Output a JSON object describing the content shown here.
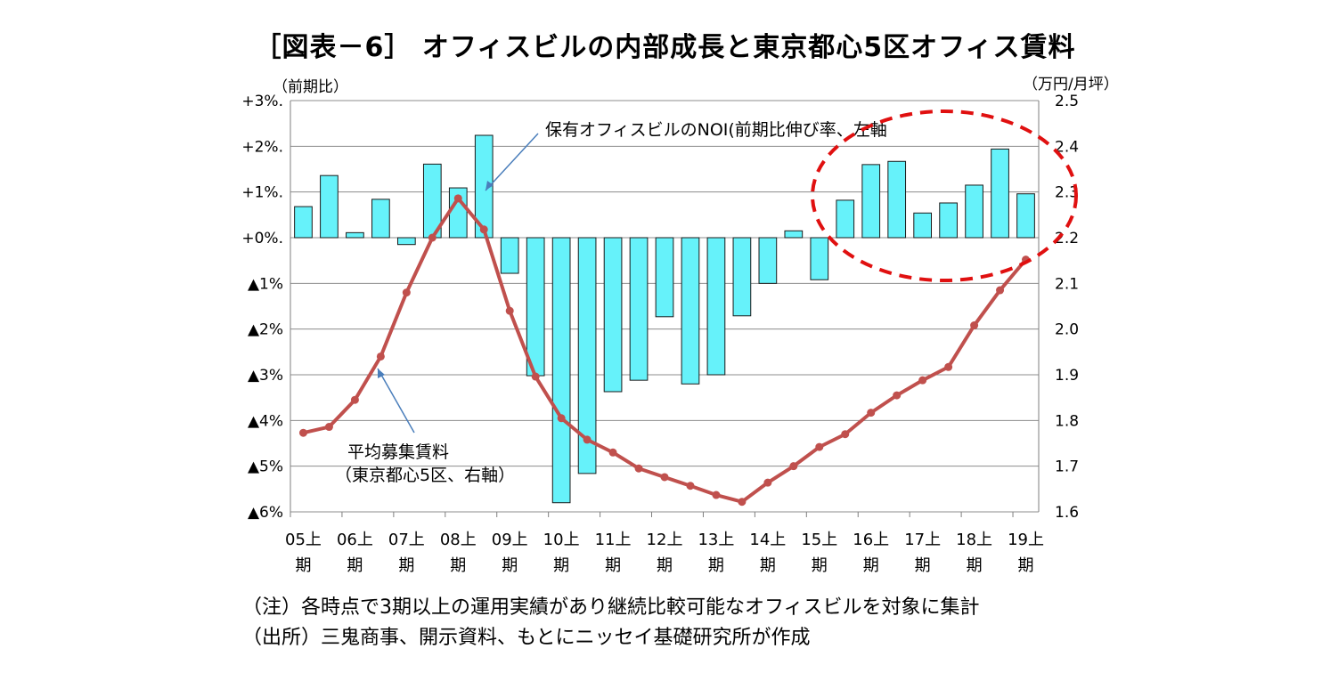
{
  "title": "［図表－6］ オフィスビルの内部成長と東京都心5区オフィス賃料",
  "notes": {
    "line1": "（注）各時点で3期以上の運用実績があり継続比較可能なオフィスビルを対象に集計",
    "line2": "（出所）三鬼商事、開示資料、もとにニッセイ基礎研究所が作成"
  },
  "chart_data": {
    "type": "bar+line",
    "left_axis": {
      "unit_label": "（前期比）",
      "range": [
        -6,
        3
      ],
      "ticks": [
        {
          "value": 3,
          "label": "+3%."
        },
        {
          "value": 2,
          "label": "+2%."
        },
        {
          "value": 1,
          "label": "+1%."
        },
        {
          "value": 0,
          "label": "+0%."
        },
        {
          "value": -1,
          "label": "▲1%"
        },
        {
          "value": -2,
          "label": "▲2%"
        },
        {
          "value": -3,
          "label": "▲3%"
        },
        {
          "value": -4,
          "label": "▲4%"
        },
        {
          "value": -5,
          "label": "▲5%"
        },
        {
          "value": -6,
          "label": "▲6%"
        }
      ]
    },
    "right_axis": {
      "unit_label": "（万円/月坪）",
      "range": [
        1.6,
        2.5
      ],
      "ticks": [
        {
          "value": 2.5,
          "label": "2.5"
        },
        {
          "value": 2.4,
          "label": "2.4"
        },
        {
          "value": 2.3,
          "label": "2.3"
        },
        {
          "value": 2.2,
          "label": "2.2"
        },
        {
          "value": 2.1,
          "label": "2.1"
        },
        {
          "value": 2.0,
          "label": "2.0"
        },
        {
          "value": 1.9,
          "label": "1.9"
        },
        {
          "value": 1.8,
          "label": "1.8"
        },
        {
          "value": 1.7,
          "label": "1.7"
        },
        {
          "value": 1.6,
          "label": "1.6"
        }
      ]
    },
    "x_labels": [
      {
        "top": "05上",
        "bottom": "期"
      },
      {
        "top": "06上",
        "bottom": "期"
      },
      {
        "top": "07上",
        "bottom": "期"
      },
      {
        "top": "08上",
        "bottom": "期"
      },
      {
        "top": "09上",
        "bottom": "期"
      },
      {
        "top": "10上",
        "bottom": "期"
      },
      {
        "top": "11上",
        "bottom": "期"
      },
      {
        "top": "12上",
        "bottom": "期"
      },
      {
        "top": "13上",
        "bottom": "期"
      },
      {
        "top": "14上",
        "bottom": "期"
      },
      {
        "top": "15上",
        "bottom": "期"
      },
      {
        "top": "16上",
        "bottom": "期"
      },
      {
        "top": "17上",
        "bottom": "期"
      },
      {
        "top": "18上",
        "bottom": "期"
      },
      {
        "top": "19上",
        "bottom": "期"
      }
    ],
    "periods_per_label": 2,
    "grid": "horizontal",
    "series": [
      {
        "name": "保有オフィスビルのNOI(前期比伸び率、左軸",
        "type": "bar",
        "axis": "left",
        "color": "#66f2fa",
        "values": [
          0.68,
          1.36,
          0.11,
          0.84,
          -0.15,
          1.61,
          1.09,
          2.24,
          -0.78,
          -3.02,
          -5.8,
          -5.16,
          -3.37,
          -3.12,
          -1.73,
          -3.2,
          -3.0,
          -1.71,
          -1.0,
          0.15,
          -0.92,
          0.82,
          1.6,
          1.67,
          0.54,
          0.76,
          1.15,
          1.94,
          0.96
        ]
      },
      {
        "name": "平均募集賃料",
        "name_line2": "（東京都心5区、右軸）",
        "type": "line",
        "axis": "right",
        "color": "#c0504d",
        "values": [
          1.773,
          1.786,
          1.845,
          1.94,
          2.08,
          2.2,
          2.286,
          2.218,
          2.04,
          1.896,
          1.805,
          1.758,
          1.73,
          1.695,
          1.676,
          1.657,
          1.637,
          1.622,
          1.664,
          1.7,
          1.742,
          1.77,
          1.817,
          1.855,
          1.888,
          1.917,
          2.008,
          2.085,
          2.152
        ]
      }
    ],
    "annotations": {
      "highlight": "dashed red ellipse around 16上期–19上期"
    }
  }
}
